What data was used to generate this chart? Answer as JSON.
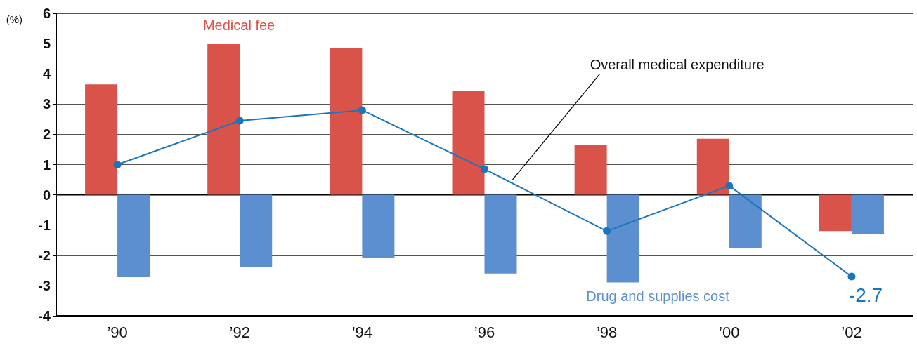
{
  "chart_data": {
    "type": "bar",
    "ylabel": "(%)",
    "categories": [
      "’90",
      "’92",
      "’94",
      "’96",
      "’98",
      "’00",
      "’02"
    ],
    "series": [
      {
        "name": "Medical fee",
        "color": "#d9534a",
        "values": [
          3.65,
          5.0,
          4.85,
          3.45,
          1.65,
          1.85,
          -1.2
        ]
      },
      {
        "name": "Drug and supplies cost",
        "color": "#5b8fd0",
        "values": [
          -2.7,
          -2.4,
          -2.1,
          -2.6,
          -2.9,
          -1.75,
          -1.3
        ]
      },
      {
        "name": "Overall medical expenditure",
        "type": "line",
        "color": "#1a75bc",
        "marker": "circle",
        "values": [
          1.0,
          2.45,
          2.8,
          0.85,
          -1.2,
          0.3,
          -2.7
        ],
        "value_labels": [
          null,
          null,
          null,
          null,
          null,
          null,
          "-2.7"
        ]
      }
    ],
    "ylim": [
      -4,
      6
    ],
    "yticks": [
      -4,
      -3,
      -2,
      -1,
      0,
      1,
      2,
      3,
      4,
      5,
      6
    ],
    "grid": "y",
    "legend": false
  }
}
